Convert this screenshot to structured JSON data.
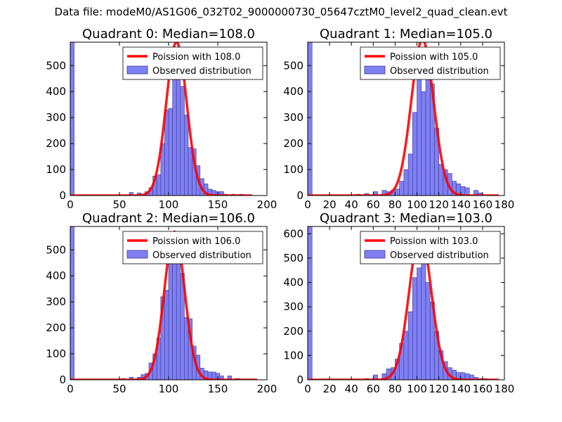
{
  "figure": {
    "suptitle": "Data file: modeM0/AS1G06_032T02_9000000730_05647cztM0_level2_quad_clean.evt"
  },
  "colors": {
    "fit_line": "#ff0000",
    "bar_fill": "#7f7ff5",
    "bar_edge": "#3a3a8c",
    "background": "#ffffff"
  },
  "chart_data": [
    {
      "type": "bar",
      "title": "Quadrant 0: Median=108.0",
      "xlim": [
        0,
        200
      ],
      "ylim": [
        0,
        590
      ],
      "xticks": [
        0,
        50,
        100,
        150,
        200
      ],
      "yticks": [
        0,
        100,
        200,
        300,
        400,
        500
      ],
      "legend": {
        "placement": "top-right",
        "entries": [
          "Poission with 108.0",
          "Observed distribution"
        ]
      },
      "fit": {
        "name": "Poission with 108.0",
        "mean": 108.0,
        "peak": 590,
        "x_range": [
          0,
          185
        ]
      },
      "histogram": {
        "name": "Observed distribution",
        "bin_width": 4,
        "bins": [
          [
            0,
            590
          ],
          [
            60,
            12
          ],
          [
            68,
            10
          ],
          [
            76,
            15
          ],
          [
            80,
            30
          ],
          [
            84,
            75
          ],
          [
            88,
            80
          ],
          [
            92,
            200
          ],
          [
            96,
            330
          ],
          [
            100,
            335
          ],
          [
            104,
            520
          ],
          [
            108,
            500
          ],
          [
            112,
            420
          ],
          [
            116,
            310
          ],
          [
            120,
            185
          ],
          [
            124,
            180
          ],
          [
            128,
            115
          ],
          [
            132,
            65
          ],
          [
            136,
            45
          ],
          [
            140,
            25
          ],
          [
            144,
            20
          ],
          [
            148,
            15
          ],
          [
            152,
            15
          ],
          [
            156,
            5
          ],
          [
            164,
            5
          ],
          [
            172,
            5
          ]
        ]
      }
    },
    {
      "type": "bar",
      "title": "Quadrant 1: Median=105.0",
      "xlim": [
        0,
        180
      ],
      "ylim": [
        0,
        590
      ],
      "xticks": [
        0,
        20,
        40,
        60,
        80,
        100,
        120,
        140,
        160,
        180
      ],
      "yticks": [
        0,
        100,
        200,
        300,
        400,
        500
      ],
      "legend": {
        "placement": "top-right",
        "entries": [
          "Poission with 105.0",
          "Observed distribution"
        ]
      },
      "fit": {
        "name": "Poission with 105.0",
        "mean": 105.0,
        "peak": 600,
        "x_range": [
          0,
          175
        ]
      },
      "histogram": {
        "name": "Observed distribution",
        "bin_width": 4,
        "bins": [
          [
            0,
            590
          ],
          [
            44,
            5
          ],
          [
            52,
            8
          ],
          [
            60,
            15
          ],
          [
            68,
            20
          ],
          [
            72,
            15
          ],
          [
            76,
            20
          ],
          [
            80,
            25
          ],
          [
            84,
            55
          ],
          [
            88,
            100
          ],
          [
            92,
            160
          ],
          [
            96,
            320
          ],
          [
            100,
            450
          ],
          [
            104,
            400
          ],
          [
            108,
            550
          ],
          [
            112,
            430
          ],
          [
            116,
            260
          ],
          [
            120,
            120
          ],
          [
            124,
            100
          ],
          [
            128,
            85
          ],
          [
            132,
            55
          ],
          [
            136,
            45
          ],
          [
            140,
            35
          ],
          [
            144,
            30
          ],
          [
            152,
            20
          ],
          [
            156,
            10
          ]
        ]
      }
    },
    {
      "type": "bar",
      "title": "Quadrant 2: Median=106.0",
      "xlim": [
        0,
        200
      ],
      "ylim": [
        0,
        590
      ],
      "xticks": [
        0,
        50,
        100,
        150,
        200
      ],
      "yticks": [
        0,
        100,
        200,
        300,
        400,
        500
      ],
      "legend": {
        "placement": "top-right",
        "entries": [
          "Poission with 106.0",
          "Observed distribution"
        ]
      },
      "fit": {
        "name": "Poission with 106.0",
        "mean": 106.0,
        "peak": 570,
        "x_range": [
          0,
          190
        ]
      },
      "histogram": {
        "name": "Observed distribution",
        "bin_width": 4,
        "bins": [
          [
            0,
            590
          ],
          [
            52,
            5
          ],
          [
            60,
            10
          ],
          [
            68,
            10
          ],
          [
            72,
            20
          ],
          [
            76,
            25
          ],
          [
            80,
            65
          ],
          [
            84,
            100
          ],
          [
            88,
            160
          ],
          [
            92,
            320
          ],
          [
            96,
            345
          ],
          [
            100,
            550
          ],
          [
            104,
            555
          ],
          [
            108,
            510
          ],
          [
            112,
            410
          ],
          [
            116,
            240
          ],
          [
            120,
            235
          ],
          [
            124,
            130
          ],
          [
            128,
            95
          ],
          [
            132,
            45
          ],
          [
            136,
            35
          ],
          [
            140,
            30
          ],
          [
            144,
            30
          ],
          [
            148,
            25
          ],
          [
            152,
            15
          ],
          [
            160,
            15
          ],
          [
            168,
            5
          ]
        ]
      }
    },
    {
      "type": "bar",
      "title": "Quadrant 3: Median=103.0",
      "xlim": [
        0,
        180
      ],
      "ylim": [
        0,
        630
      ],
      "xticks": [
        0,
        20,
        40,
        60,
        80,
        100,
        120,
        140,
        160,
        180
      ],
      "yticks": [
        0,
        100,
        200,
        300,
        400,
        500,
        600
      ],
      "legend": {
        "placement": "top-right",
        "entries": [
          "Poission with 103.0",
          "Observed distribution"
        ]
      },
      "fit": {
        "name": "Poission with 103.0",
        "mean": 103.0,
        "peak": 600,
        "x_range": [
          0,
          175
        ]
      },
      "histogram": {
        "name": "Observed distribution",
        "bin_width": 4,
        "bins": [
          [
            0,
            630
          ],
          [
            52,
            5
          ],
          [
            60,
            20
          ],
          [
            68,
            25
          ],
          [
            72,
            45
          ],
          [
            76,
            50
          ],
          [
            80,
            85
          ],
          [
            84,
            150
          ],
          [
            88,
            200
          ],
          [
            92,
            280
          ],
          [
            96,
            420
          ],
          [
            100,
            460
          ],
          [
            104,
            480
          ],
          [
            108,
            400
          ],
          [
            112,
            320
          ],
          [
            116,
            200
          ],
          [
            120,
            120
          ],
          [
            124,
            75
          ],
          [
            128,
            50
          ],
          [
            132,
            40
          ],
          [
            136,
            30
          ],
          [
            140,
            30
          ],
          [
            144,
            25
          ],
          [
            148,
            20
          ],
          [
            152,
            10
          ],
          [
            156,
            5
          ],
          [
            160,
            5
          ]
        ]
      }
    }
  ]
}
